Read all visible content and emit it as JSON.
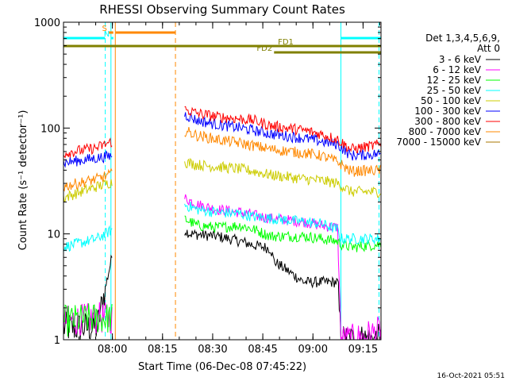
{
  "chart_data": {
    "type": "line",
    "title": "RHESSI Observing Summary Count Rates",
    "xlabel": "Start Time (06-Dec-08 07:45:22)",
    "ylabel": "Count Rate (s⁻¹ detector⁻¹)",
    "y_scale": "log",
    "ylim": [
      1,
      1000
    ],
    "xlim_minutes": [
      0,
      95
    ],
    "x_tick_labels": [
      "08:00",
      "08:15",
      "08:30",
      "08:45",
      "09:00",
      "09:15"
    ],
    "y_tick_labels": [
      "1",
      "10",
      "100",
      "1000"
    ],
    "legend_header": [
      "Det 1,3,4,5,6,9,",
      "Att 0"
    ],
    "legend_placement": "right",
    "series": [
      {
        "name": "3 - 6 keV",
        "color": "#000000",
        "x": [
          0,
          10,
          14.7,
          30,
          36,
          38,
          46,
          53,
          57,
          60,
          62,
          63,
          72,
          75,
          82,
          83,
          86,
          87,
          95
        ],
        "y": [
          1.3,
          1.3,
          6.5,
          null,
          11,
          10,
          9.5,
          8.5,
          7.8,
          7.5,
          7.2,
          5.5,
          3.5,
          3.5,
          3.5,
          1,
          1,
          1,
          1
        ]
      },
      {
        "name": "6 - 12 keV",
        "color": "#ff00ff",
        "x": [
          0,
          10,
          14.7,
          30,
          36,
          40,
          46,
          53,
          57,
          62,
          72,
          77,
          82,
          83,
          86,
          87,
          95
        ],
        "y": [
          1.5,
          1.6,
          1.6,
          null,
          22,
          19,
          17,
          16,
          15,
          14,
          13,
          12,
          11.5,
          1,
          1,
          1,
          1.2
        ]
      },
      {
        "name": "12 - 25 keV",
        "color": "#00ff00",
        "x": [
          0,
          10,
          14.7,
          30,
          36,
          40,
          46,
          53,
          57,
          62,
          72,
          77,
          82,
          83,
          86,
          87,
          95
        ],
        "y": [
          1.5,
          1.6,
          1.6,
          null,
          14,
          12,
          11.5,
          12,
          11,
          9.5,
          9.5,
          9,
          8.5,
          8,
          7.5,
          7.5,
          8
        ]
      },
      {
        "name": "25 - 50 keV",
        "color": "#00ffff",
        "x": [
          0,
          10,
          14.7,
          30,
          36,
          40,
          46,
          53,
          57,
          62,
          72,
          77,
          82,
          83,
          86,
          95
        ],
        "y": [
          7.5,
          9,
          11,
          null,
          19,
          17,
          16,
          15.5,
          14.5,
          14,
          13,
          12.5,
          11,
          9,
          9,
          9
        ]
      },
      {
        "name": "50 - 100 keV",
        "color": "#cccc00",
        "x": [
          0,
          10,
          14.7,
          30,
          36,
          40,
          46,
          53,
          57,
          62,
          72,
          77,
          82,
          86,
          95
        ],
        "y": [
          22,
          28,
          31,
          null,
          48,
          45,
          43,
          41,
          39,
          36,
          33,
          32,
          30,
          25,
          25
        ]
      },
      {
        "name": "100 - 300 keV",
        "color": "#0000ff",
        "x": [
          0,
          10,
          14.7,
          30,
          36,
          40,
          46,
          53,
          57,
          62,
          72,
          77,
          82,
          86,
          95
        ],
        "y": [
          47,
          52,
          55,
          null,
          135,
          118,
          108,
          100,
          95,
          88,
          80,
          75,
          70,
          55,
          57
        ]
      },
      {
        "name": "300 - 800 keV",
        "color": "#ff0000",
        "x": [
          0,
          10,
          14.7,
          30,
          36,
          40,
          46,
          53,
          57,
          62,
          72,
          77,
          82,
          86,
          95
        ],
        "y": [
          58,
          65,
          75,
          null,
          150,
          138,
          128,
          122,
          118,
          105,
          95,
          88,
          78,
          63,
          70
        ]
      },
      {
        "name": "800 - 7000 keV",
        "color": "#ff8800",
        "x": [
          0,
          10,
          14.7,
          30,
          36,
          40,
          46,
          53,
          57,
          62,
          72,
          77,
          82,
          86,
          95
        ],
        "y": [
          28,
          33,
          37,
          null,
          95,
          85,
          78,
          72,
          68,
          63,
          58,
          55,
          48,
          39,
          40
        ]
      },
      {
        "name": "7000 - 15000 keV",
        "color": "#aa7700",
        "x": [
          0,
          95
        ],
        "y": [
          null,
          null
        ]
      }
    ],
    "gaps": [
      [
        14.7,
        30.3
      ]
    ],
    "vertical_markers": [
      {
        "x": 0,
        "color": "#00ffff",
        "style": "solid"
      },
      {
        "x": 12.5,
        "color": "#00ffff",
        "style": "dashed"
      },
      {
        "x": 14.2,
        "color": "#00ffff",
        "style": "solid"
      },
      {
        "x": 15.5,
        "color": "#ff8800",
        "style": "solid"
      },
      {
        "x": 33.5,
        "color": "#ff8800",
        "style": "dashed"
      },
      {
        "x": 83.0,
        "color": "#00ffff",
        "style": "solid"
      },
      {
        "x": 94.4,
        "color": "#00ffff",
        "style": "dashed"
      }
    ],
    "flag_bars": [
      {
        "label": "S",
        "color": "#ff8800",
        "from": 13.5,
        "to": 14.9,
        "level": 0,
        "label_pos": "left"
      },
      {
        "label": "",
        "color": "#ff8800",
        "from": 15.6,
        "to": 33.4,
        "level": 0
      },
      {
        "label": "N",
        "color": "#00ffff",
        "from": 14.3,
        "to": 14.9,
        "level": 1,
        "label_pos": "left"
      },
      {
        "label": "",
        "color": "#00ffff",
        "from": 0,
        "to": 12.4,
        "level": 1
      },
      {
        "label": "",
        "color": "#00ffff",
        "from": 83.1,
        "to": 95,
        "level": 1
      },
      {
        "label": "FD1",
        "color": "#808000",
        "from": 0,
        "to": 95,
        "level": 2,
        "label_pos": "mid"
      },
      {
        "label": "FD2",
        "color": "#808000",
        "from": 63,
        "to": 95,
        "level": 3,
        "label_pos": "left"
      }
    ]
  },
  "footer": {
    "timestamp": "16-Oct-2021 05:51"
  }
}
